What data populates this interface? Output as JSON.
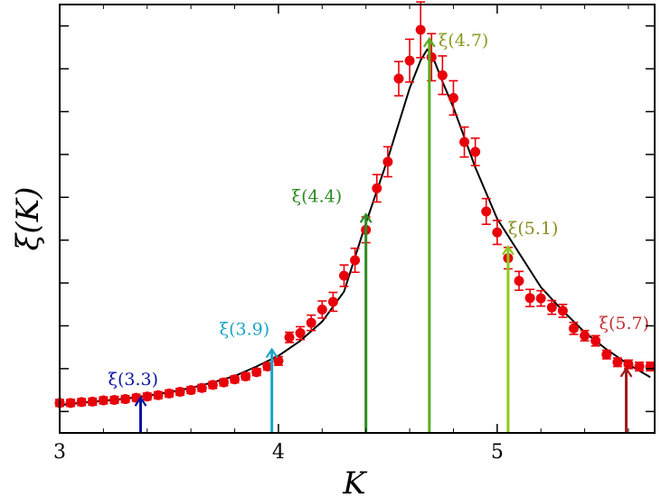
{
  "chart_data": {
    "type": "scatter",
    "xlabel": "K",
    "ylabel": "ξ(K)",
    "xlim": [
      3.0,
      5.72
    ],
    "ylim": [
      0,
      10
    ],
    "xticks": [
      3,
      4,
      5
    ],
    "xtick_labels": [
      "3",
      "4",
      "5"
    ],
    "yticks": [
      0.5,
      1.5,
      2.5,
      3.5,
      4.5,
      5.5,
      6.5,
      7.5,
      8.5,
      9.5
    ],
    "grid": false,
    "legend": "none",
    "marker_color": "#e8000b",
    "curve_color": "#000000",
    "series": [
      {
        "x": [
          3.0,
          3.05,
          3.1,
          3.15,
          3.2,
          3.25,
          3.3,
          3.35,
          3.4,
          3.45,
          3.5,
          3.55,
          3.6,
          3.65,
          3.7,
          3.75,
          3.8,
          3.85,
          3.9,
          3.95,
          4.0,
          4.05,
          4.1,
          4.15,
          4.2,
          4.25,
          4.3,
          4.35,
          4.4,
          4.45,
          4.5,
          4.55,
          4.6,
          4.65,
          4.7,
          4.75,
          4.8,
          4.85,
          4.9,
          4.95,
          5.0,
          5.05,
          5.1,
          5.15,
          5.2,
          5.25,
          5.3,
          5.35,
          5.4,
          5.45,
          5.5,
          5.55,
          5.6,
          5.65,
          5.7
        ],
        "y": [
          0.7,
          0.7,
          0.72,
          0.73,
          0.76,
          0.77,
          0.79,
          0.82,
          0.85,
          0.88,
          0.92,
          0.96,
          1.0,
          1.05,
          1.12,
          1.18,
          1.25,
          1.32,
          1.42,
          1.55,
          1.68,
          2.23,
          2.33,
          2.57,
          2.88,
          3.06,
          3.67,
          4.03,
          4.74,
          5.71,
          6.33,
          8.27,
          8.69,
          9.41,
          8.77,
          8.35,
          7.82,
          6.79,
          6.56,
          5.17,
          4.68,
          4.08,
          3.55,
          3.15,
          3.14,
          2.93,
          2.85,
          2.44,
          2.27,
          2.15,
          1.83,
          1.65,
          1.6,
          1.55,
          1.55
        ],
        "yerr": [
          0.08,
          0.08,
          0.08,
          0.08,
          0.08,
          0.08,
          0.08,
          0.08,
          0.08,
          0.08,
          0.08,
          0.08,
          0.08,
          0.08,
          0.08,
          0.08,
          0.08,
          0.08,
          0.08,
          0.08,
          0.1,
          0.12,
          0.15,
          0.18,
          0.2,
          0.22,
          0.25,
          0.28,
          0.3,
          0.32,
          0.35,
          0.4,
          0.5,
          0.65,
          0.55,
          0.45,
          0.4,
          0.35,
          0.32,
          0.3,
          0.28,
          0.25,
          0.22,
          0.2,
          0.18,
          0.16,
          0.15,
          0.14,
          0.12,
          0.12,
          0.1,
          0.1,
          0.1,
          0.1,
          0.1
        ]
      }
    ],
    "curve": {
      "x": [
        3.0,
        3.1,
        3.2,
        3.3,
        3.4,
        3.5,
        3.6,
        3.7,
        3.8,
        3.9,
        4.0,
        4.1,
        4.2,
        4.3,
        4.4,
        4.5,
        4.6,
        4.65,
        4.68,
        4.7,
        4.75,
        4.8,
        4.9,
        5.0,
        5.1,
        5.2,
        5.3,
        5.4,
        5.5,
        5.6,
        5.7
      ],
      "y": [
        0.65,
        0.7,
        0.75,
        0.8,
        0.87,
        0.95,
        1.05,
        1.18,
        1.33,
        1.55,
        1.8,
        2.15,
        2.6,
        3.3,
        4.9,
        6.4,
        8.05,
        8.7,
        8.95,
        8.85,
        8.2,
        7.6,
        6.2,
        5.0,
        4.2,
        3.4,
        2.85,
        2.35,
        1.95,
        1.6,
        1.3
      ]
    },
    "annotations": [
      {
        "label": "ξ(3.3)",
        "x": 3.37,
        "y_top": 0.82,
        "color": "#0a14a0"
      },
      {
        "label": "ξ(3.9)",
        "x": 3.97,
        "y_top": 1.95,
        "color": "#1aa3c8"
      },
      {
        "label": "ξ(4.4)",
        "x": 4.4,
        "y_top": 5.1,
        "color": "#2e8b22"
      },
      {
        "label": "ξ(4.7)",
        "x": 4.69,
        "y_top": 9.2,
        "color": "#5aad1e"
      },
      {
        "label": "ξ(5.1)",
        "x": 5.05,
        "y_top": 4.35,
        "color": "#8ec81e"
      },
      {
        "label": "ξ(5.7)",
        "x": 5.59,
        "y_top": 1.5,
        "color": "#a01818"
      }
    ],
    "annotation_text_colors": [
      "#0a14a0",
      "#1aa3c8",
      "#2e8b22",
      "#8a9a20",
      "#8a8a20",
      "#c03030"
    ]
  }
}
